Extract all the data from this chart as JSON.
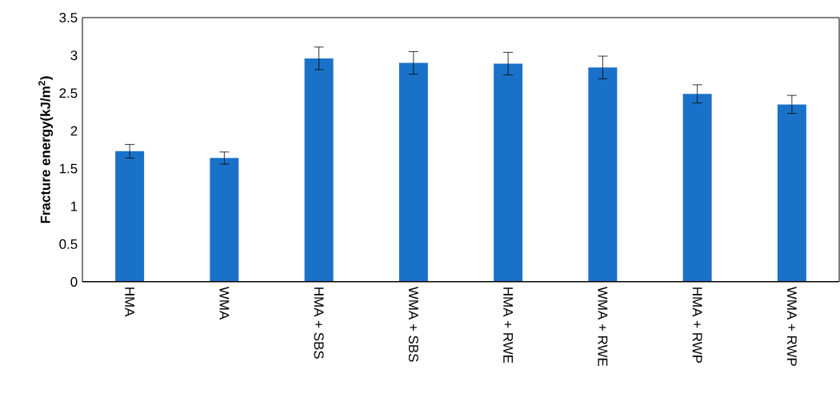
{
  "chart_data": {
    "type": "bar",
    "ylabel": "Fracture energy(kJ/m$^{2}$)",
    "categories": [
      "HMA",
      "WMA",
      "HMA + SBS",
      "WMA + SBS",
      "HMA + RWE",
      "WMA + RWE",
      "HMA + RWP",
      "WMA + RWP"
    ],
    "values": [
      1.73,
      1.64,
      2.96,
      2.9,
      2.89,
      2.84,
      2.49,
      2.35
    ],
    "errors": [
      0.09,
      0.08,
      0.15,
      0.15,
      0.15,
      0.15,
      0.12,
      0.12
    ],
    "color": "#1a72c8",
    "ylim": [
      0,
      3.5
    ],
    "yticks": [
      0,
      0.5,
      1,
      1.5,
      2,
      2.5,
      3,
      3.5
    ]
  }
}
